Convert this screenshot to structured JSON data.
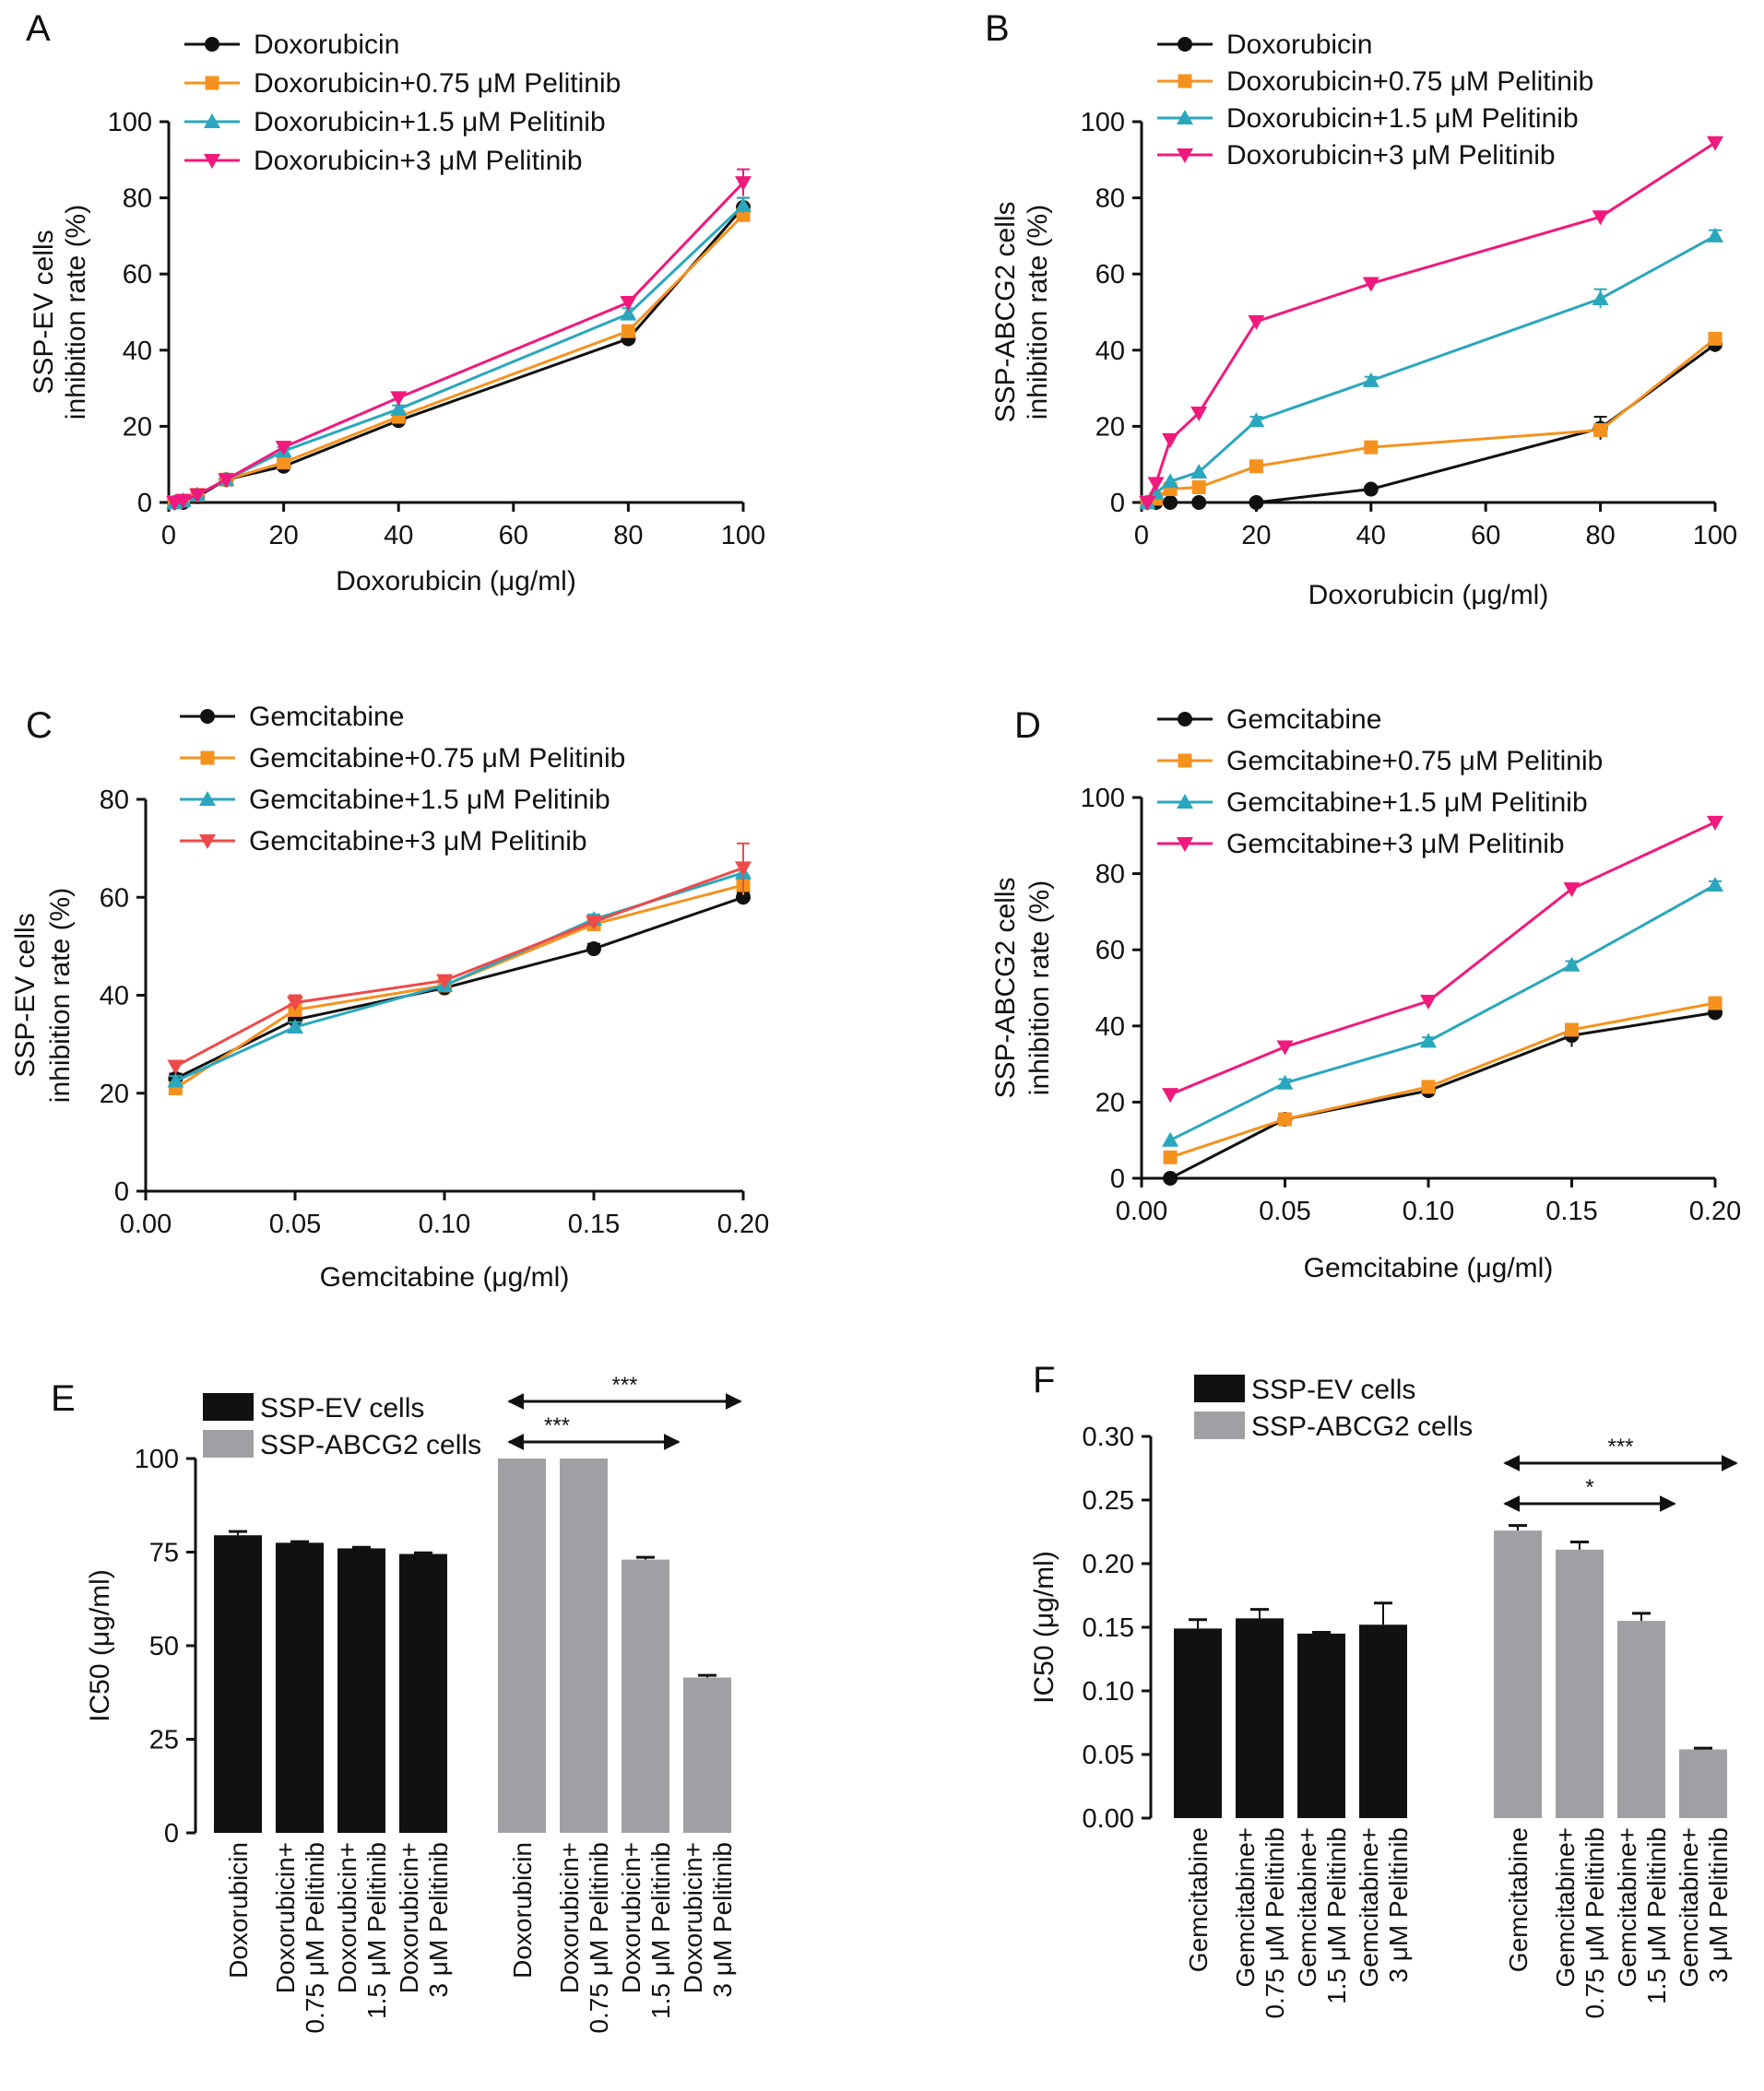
{
  "colors": {
    "black": "#111111",
    "orange": "#f5921e",
    "cyan": "#2aa7bd",
    "magenta": "#f0197d",
    "red": "#ee4a4a",
    "gray": "#a0a0a4"
  },
  "chart_data": [
    {
      "panel": "A",
      "type": "line",
      "ylabel": [
        "SSP-EV cells",
        "inhibition rate (%)"
      ],
      "xlabel": "Doxorubicin (μg/ml)",
      "xlim": [
        0,
        100
      ],
      "ylim": [
        0,
        100
      ],
      "xticks": [
        0,
        20,
        40,
        60,
        80,
        100
      ],
      "xtick_labels": [
        "0",
        "20",
        "40",
        "60",
        "80",
        "100"
      ],
      "yticks": [
        0,
        20,
        40,
        60,
        80,
        100
      ],
      "ytick_labels": [
        "0",
        "20",
        "40",
        "60",
        "80",
        "100"
      ],
      "x": [
        1,
        2.5,
        5,
        10,
        20,
        40,
        80,
        100
      ],
      "legend": "top-left",
      "series": [
        {
          "name": "Doxorubicin",
          "marker": "circle",
          "color": "black",
          "values": [
            0,
            0,
            1.5,
            6,
            9.5,
            21.5,
            43,
            77.5
          ],
          "err": [
            0.5,
            0.5,
            0.5,
            1,
            1,
            1,
            2,
            2.5
          ]
        },
        {
          "name": "Doxorubicin+0.75 μM Pelitinib",
          "marker": "square",
          "color": "orange",
          "values": [
            0,
            0.5,
            2,
            6,
            10.5,
            22.5,
            45,
            75.5
          ],
          "err": [
            0.5,
            0.5,
            0.5,
            1,
            1,
            1,
            1.5,
            1.5
          ]
        },
        {
          "name": "Doxorubicin+1.5 μM Pelitinib",
          "marker": "tri-up",
          "color": "cyan",
          "values": [
            0,
            0.5,
            2,
            6,
            13.5,
            24.5,
            49.5,
            78
          ],
          "err": [
            0.5,
            0.5,
            0.5,
            1,
            1,
            1,
            1.5,
            2
          ]
        },
        {
          "name": "Doxorubicin+3 μM Pelitinib",
          "marker": "tri-down",
          "color": "magenta",
          "values": [
            0,
            0.5,
            2,
            6,
            14.5,
            27.5,
            52.5,
            84
          ],
          "err": [
            0.5,
            0.5,
            0.5,
            1,
            1,
            1,
            1.5,
            3.5
          ]
        }
      ]
    },
    {
      "panel": "B",
      "type": "line",
      "ylabel": [
        "SSP-ABCG2 cells",
        "inhibition rate (%)"
      ],
      "xlabel": "Doxorubicin (μg/ml)",
      "xlim": [
        0,
        100
      ],
      "ylim": [
        0,
        100
      ],
      "xticks": [
        0,
        20,
        40,
        60,
        80,
        100
      ],
      "xtick_labels": [
        "0",
        "20",
        "40",
        "60",
        "80",
        "100"
      ],
      "yticks": [
        0,
        20,
        40,
        60,
        80,
        100
      ],
      "ytick_labels": [
        "0",
        "20",
        "40",
        "60",
        "80",
        "100"
      ],
      "x": [
        1,
        2.5,
        5,
        10,
        20,
        40,
        80,
        100
      ],
      "legend": "top-left",
      "series": [
        {
          "name": "Doxorubicin",
          "marker": "circle",
          "color": "black",
          "values": [
            0,
            0,
            0,
            0,
            0,
            3.5,
            19.5,
            41.5
          ],
          "err": [
            0.3,
            0.3,
            0.3,
            0.3,
            0.3,
            0.5,
            3,
            2
          ]
        },
        {
          "name": "Doxorubicin+0.75 μM Pelitinib",
          "marker": "square",
          "color": "orange",
          "values": [
            0,
            1,
            3.5,
            4,
            9.5,
            14.5,
            19,
            43
          ],
          "err": [
            0.3,
            0.5,
            0.5,
            0.5,
            1,
            1,
            1.5,
            1.5
          ]
        },
        {
          "name": "Doxorubicin+1.5 μM Pelitinib",
          "marker": "tri-up",
          "color": "cyan",
          "values": [
            0,
            2.5,
            5.5,
            8,
            21.5,
            32,
            53.5,
            70
          ],
          "err": [
            0.3,
            0.5,
            0.5,
            0.5,
            1,
            1,
            2.5,
            1.5
          ]
        },
        {
          "name": "Doxorubicin+3 μM Pelitinib",
          "marker": "tri-down",
          "color": "magenta",
          "values": [
            0,
            5,
            16.5,
            23.5,
            47.5,
            57.5,
            75,
            94.5
          ],
          "err": [
            0.3,
            0.5,
            0.5,
            1,
            1,
            1,
            1,
            1
          ]
        }
      ]
    },
    {
      "panel": "C",
      "type": "line",
      "ylabel": [
        "SSP-EV cells",
        "inhibition rate (%)"
      ],
      "xlabel": "Gemcitabine (μg/ml)",
      "xlim": [
        0,
        0.2
      ],
      "ylim": [
        0,
        80
      ],
      "xticks": [
        0,
        0.05,
        0.1,
        0.15,
        0.2
      ],
      "xtick_labels": [
        "0.00",
        "0.05",
        "0.10",
        "0.15",
        "0.20"
      ],
      "yticks": [
        0,
        20,
        40,
        60,
        80
      ],
      "ytick_labels": [
        "0",
        "20",
        "40",
        "60",
        "80"
      ],
      "x": [
        0.01,
        0.05,
        0.1,
        0.15,
        0.2
      ],
      "legend": "top-left",
      "series": [
        {
          "name": "Gemcitabine",
          "marker": "circle",
          "color": "black",
          "values": [
            23,
            35,
            41.5,
            49.5,
            60
          ],
          "err": [
            1,
            1,
            1,
            1,
            1
          ]
        },
        {
          "name": "Gemcitabine+0.75 μM Pelitinib",
          "marker": "square",
          "color": "orange",
          "values": [
            21,
            37,
            42,
            54.5,
            62.5
          ],
          "err": [
            1,
            1,
            1,
            1,
            2
          ]
        },
        {
          "name": "Gemcitabine+1.5 μM Pelitinib",
          "marker": "tri-up",
          "color": "cyan",
          "values": [
            22.5,
            33.5,
            42,
            55.5,
            65
          ],
          "err": [
            1,
            1,
            1,
            1,
            2
          ]
        },
        {
          "name": "Gemcitabine+3 μM Pelitinib",
          "marker": "tri-down",
          "color": "red",
          "values": [
            25.5,
            38.5,
            43,
            55,
            66
          ],
          "err": [
            1,
            1.5,
            1,
            1,
            5
          ]
        }
      ]
    },
    {
      "panel": "D",
      "type": "line",
      "ylabel": [
        "SSP-ABCG2 cells",
        "inhibition rate (%)"
      ],
      "xlabel": "Gemcitabine (μg/ml)",
      "xlim": [
        0,
        0.2
      ],
      "ylim": [
        0,
        100
      ],
      "xticks": [
        0,
        0.05,
        0.1,
        0.15,
        0.2
      ],
      "xtick_labels": [
        "0.00",
        "0.05",
        "0.10",
        "0.15",
        "0.20"
      ],
      "yticks": [
        0,
        20,
        40,
        60,
        80,
        100
      ],
      "ytick_labels": [
        "0",
        "20",
        "40",
        "60",
        "80",
        "100"
      ],
      "x": [
        0.01,
        0.05,
        0.1,
        0.15,
        0.2
      ],
      "legend": "top-left",
      "series": [
        {
          "name": "Gemcitabine",
          "marker": "circle",
          "color": "black",
          "values": [
            0,
            15.5,
            23,
            37.5,
            43.5
          ],
          "err": [
            0.3,
            1,
            1,
            3,
            1
          ]
        },
        {
          "name": "Gemcitabine+0.75 μM Pelitinib",
          "marker": "square",
          "color": "orange",
          "values": [
            5.5,
            15.5,
            24,
            39,
            46
          ],
          "err": [
            0.5,
            1,
            1,
            1.5,
            1
          ]
        },
        {
          "name": "Gemcitabine+1.5 μM Pelitinib",
          "marker": "tri-up",
          "color": "cyan",
          "values": [
            10,
            25,
            36,
            56,
            77
          ],
          "err": [
            0.5,
            1,
            1,
            1,
            1
          ]
        },
        {
          "name": "Gemcitabine+3 μM Pelitinib",
          "marker": "tri-down",
          "color": "magenta",
          "values": [
            22,
            34.5,
            46.5,
            76,
            93.5
          ],
          "err": [
            0.5,
            1,
            1,
            1,
            1
          ]
        }
      ]
    },
    {
      "panel": "E",
      "type": "bar",
      "ylabel": "IC50 (μg/ml)",
      "ylim": [
        0,
        100
      ],
      "yticks": [
        0,
        25,
        50,
        75,
        100
      ],
      "ytick_labels": [
        "0",
        "25",
        "50",
        "75",
        "100"
      ],
      "legend": "top-left",
      "legend_items": [
        {
          "name": "SSP-EV cells",
          "color": "black"
        },
        {
          "name": "SSP-ABCG2 cells",
          "color": "gray"
        }
      ],
      "categories": [
        [
          "Doxorubicin"
        ],
        [
          "Doxorubicin+",
          "0.75 μM Pelitinib"
        ],
        [
          "Doxorubicin+",
          "1.5 μM Pelitinib"
        ],
        [
          "Doxorubicin+",
          "3 μM Pelitinib"
        ]
      ],
      "series": [
        {
          "name": "SSP-EV cells",
          "color": "black",
          "values": [
            79.5,
            77.5,
            76,
            74.5
          ],
          "err": [
            1,
            0.3,
            0.3,
            0.3
          ]
        },
        {
          "name": "SSP-ABCG2 cells",
          "color": "gray",
          "values": [
            100,
            100,
            73,
            41.5
          ],
          "err": [
            0,
            0,
            0.6,
            0.6
          ]
        }
      ],
      "significance": [
        {
          "label": "***",
          "from_bar": 0,
          "to_bar": 3
        },
        {
          "label": "***",
          "from_bar": 0,
          "to_bar": 2
        }
      ]
    },
    {
      "panel": "F",
      "type": "bar",
      "ylabel": "IC50 (μg/ml)",
      "ylim": [
        0,
        0.3
      ],
      "yticks": [
        0,
        0.05,
        0.1,
        0.15,
        0.2,
        0.25,
        0.3
      ],
      "ytick_labels": [
        "0.00",
        "0.05",
        "0.10",
        "0.15",
        "0.20",
        "0.25",
        "0.30"
      ],
      "legend": "top-left",
      "legend_items": [
        {
          "name": "SSP-EV cells",
          "color": "black"
        },
        {
          "name": "SSP-ABCG2 cells",
          "color": "gray"
        }
      ],
      "categories": [
        [
          "Gemcitabine"
        ],
        [
          "Gemcitabine+",
          "0.75 μM Pelitinib"
        ],
        [
          "Gemcitabine+",
          "1.5 μM Pelitinib"
        ],
        [
          "Gemcitabine+",
          "3 μM Pelitinib"
        ]
      ],
      "series": [
        {
          "name": "SSP-EV cells",
          "color": "black",
          "values": [
            0.149,
            0.157,
            0.145,
            0.152
          ],
          "err": [
            0.007,
            0.007,
            0.001,
            0.017
          ]
        },
        {
          "name": "SSP-ABCG2 cells",
          "color": "gray",
          "values": [
            0.226,
            0.211,
            0.155,
            0.054
          ],
          "err": [
            0.004,
            0.006,
            0.006,
            0.001
          ]
        }
      ],
      "significance": [
        {
          "label": "***",
          "from_bar": 0,
          "to_bar": 3
        },
        {
          "label": "*",
          "from_bar": 0,
          "to_bar": 2
        }
      ]
    }
  ]
}
